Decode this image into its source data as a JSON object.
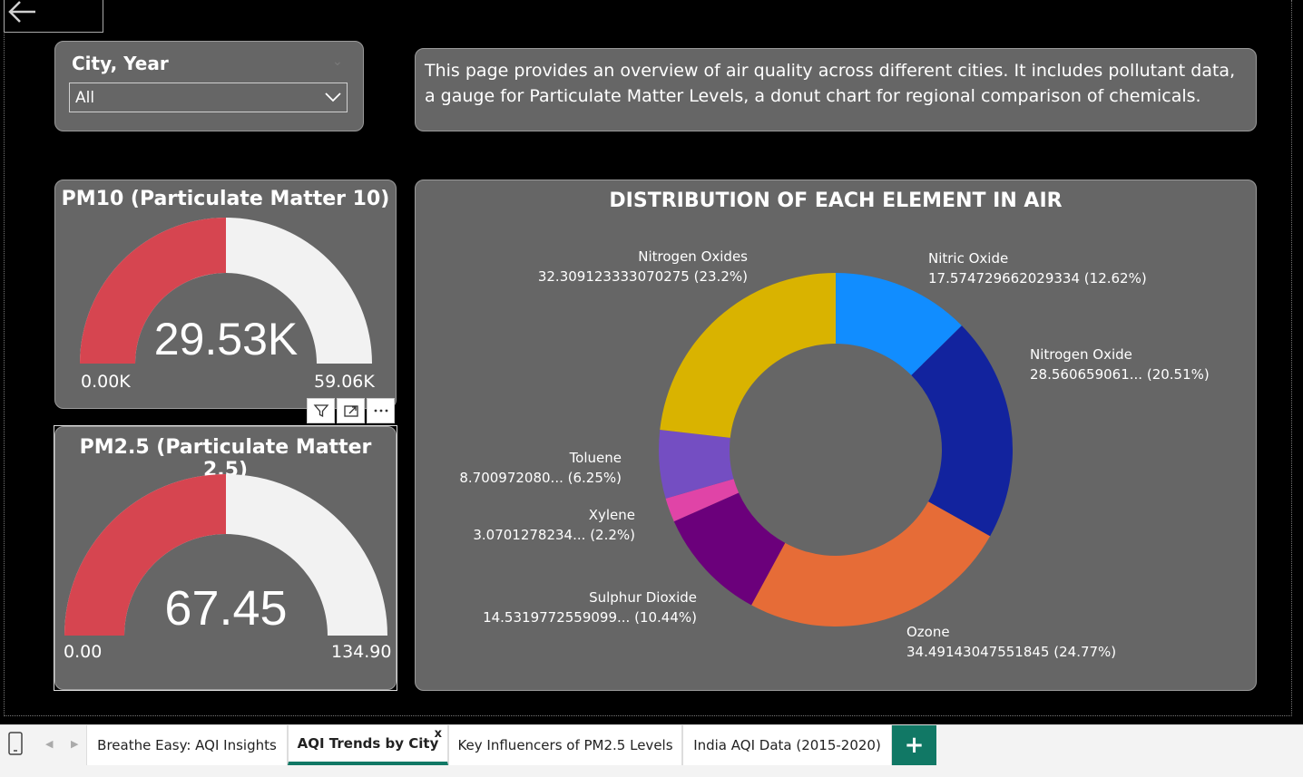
{
  "slicer": {
    "title": "City, Year",
    "value": "All"
  },
  "description": "This page provides an overview of air quality across different cities. It includes pollutant data, a gauge for Particulate Matter Levels, a donut chart for regional comparison of chemicals.",
  "gauges": [
    {
      "title": "PM10 (Particulate Matter 10)",
      "value_label": "29.53K",
      "min_label": "0.00K",
      "max_label": "59.06K",
      "fill_fraction": 0.5,
      "fill_color": "#D64550",
      "track_color": "#F2F2F2"
    },
    {
      "title": "PM2.5 (Particulate Matter 2.5)",
      "value_label": "67.45",
      "min_label": "0.00",
      "max_label": "134.90",
      "fill_fraction": 0.5,
      "fill_color": "#D64550",
      "track_color": "#F2F2F2"
    }
  ],
  "toolbar_icons": [
    "filter-icon",
    "focus-mode-icon",
    "more-options-icon"
  ],
  "chart_data": {
    "type": "pie",
    "title": "DISTRIBUTION OF EACH ELEMENT IN AIR",
    "slices": [
      {
        "name": "Nitric Oxide",
        "value_label": "17.574729662029334",
        "pct_label": "(12.62%)",
        "percent": 12.62,
        "color": "#118DFF"
      },
      {
        "name": "Nitrogen Oxide",
        "value_label": "28.560659061...",
        "pct_label": "(20.51%)",
        "percent": 20.51,
        "color": "#12239E"
      },
      {
        "name": "Ozone",
        "value_label": "34.49143047551845",
        "pct_label": "(24.77%)",
        "percent": 24.77,
        "color": "#E66C37"
      },
      {
        "name": "Sulphur Dioxide",
        "value_label": "14.5319772559099...",
        "pct_label": "(10.44%)",
        "percent": 10.44,
        "color": "#6B007B"
      },
      {
        "name": "Xylene",
        "value_label": "3.0701278234...",
        "pct_label": "(2.2%)",
        "percent": 2.2,
        "color": "#E044A7"
      },
      {
        "name": "Toluene",
        "value_label": "8.700972080...",
        "pct_label": "(6.25%)",
        "percent": 6.25,
        "color": "#744EC2"
      },
      {
        "name": "Nitrogen Oxides",
        "value_label": "32.309123333070275",
        "pct_label": "(23.2%)",
        "percent": 23.2,
        "color": "#D9B300"
      }
    ]
  },
  "tabs": [
    {
      "label": "Breathe Easy: AQI Insights",
      "active": false
    },
    {
      "label": "AQI Trends by City",
      "active": true
    },
    {
      "label": "Key Influencers of PM2.5 Levels",
      "active": false
    },
    {
      "label": "India AQI Data (2015-2020)",
      "active": false
    }
  ],
  "tab_close_symbol": "x",
  "add_tab_symbol": "+",
  "panel_color": "#666666",
  "accent_color": "#117865"
}
